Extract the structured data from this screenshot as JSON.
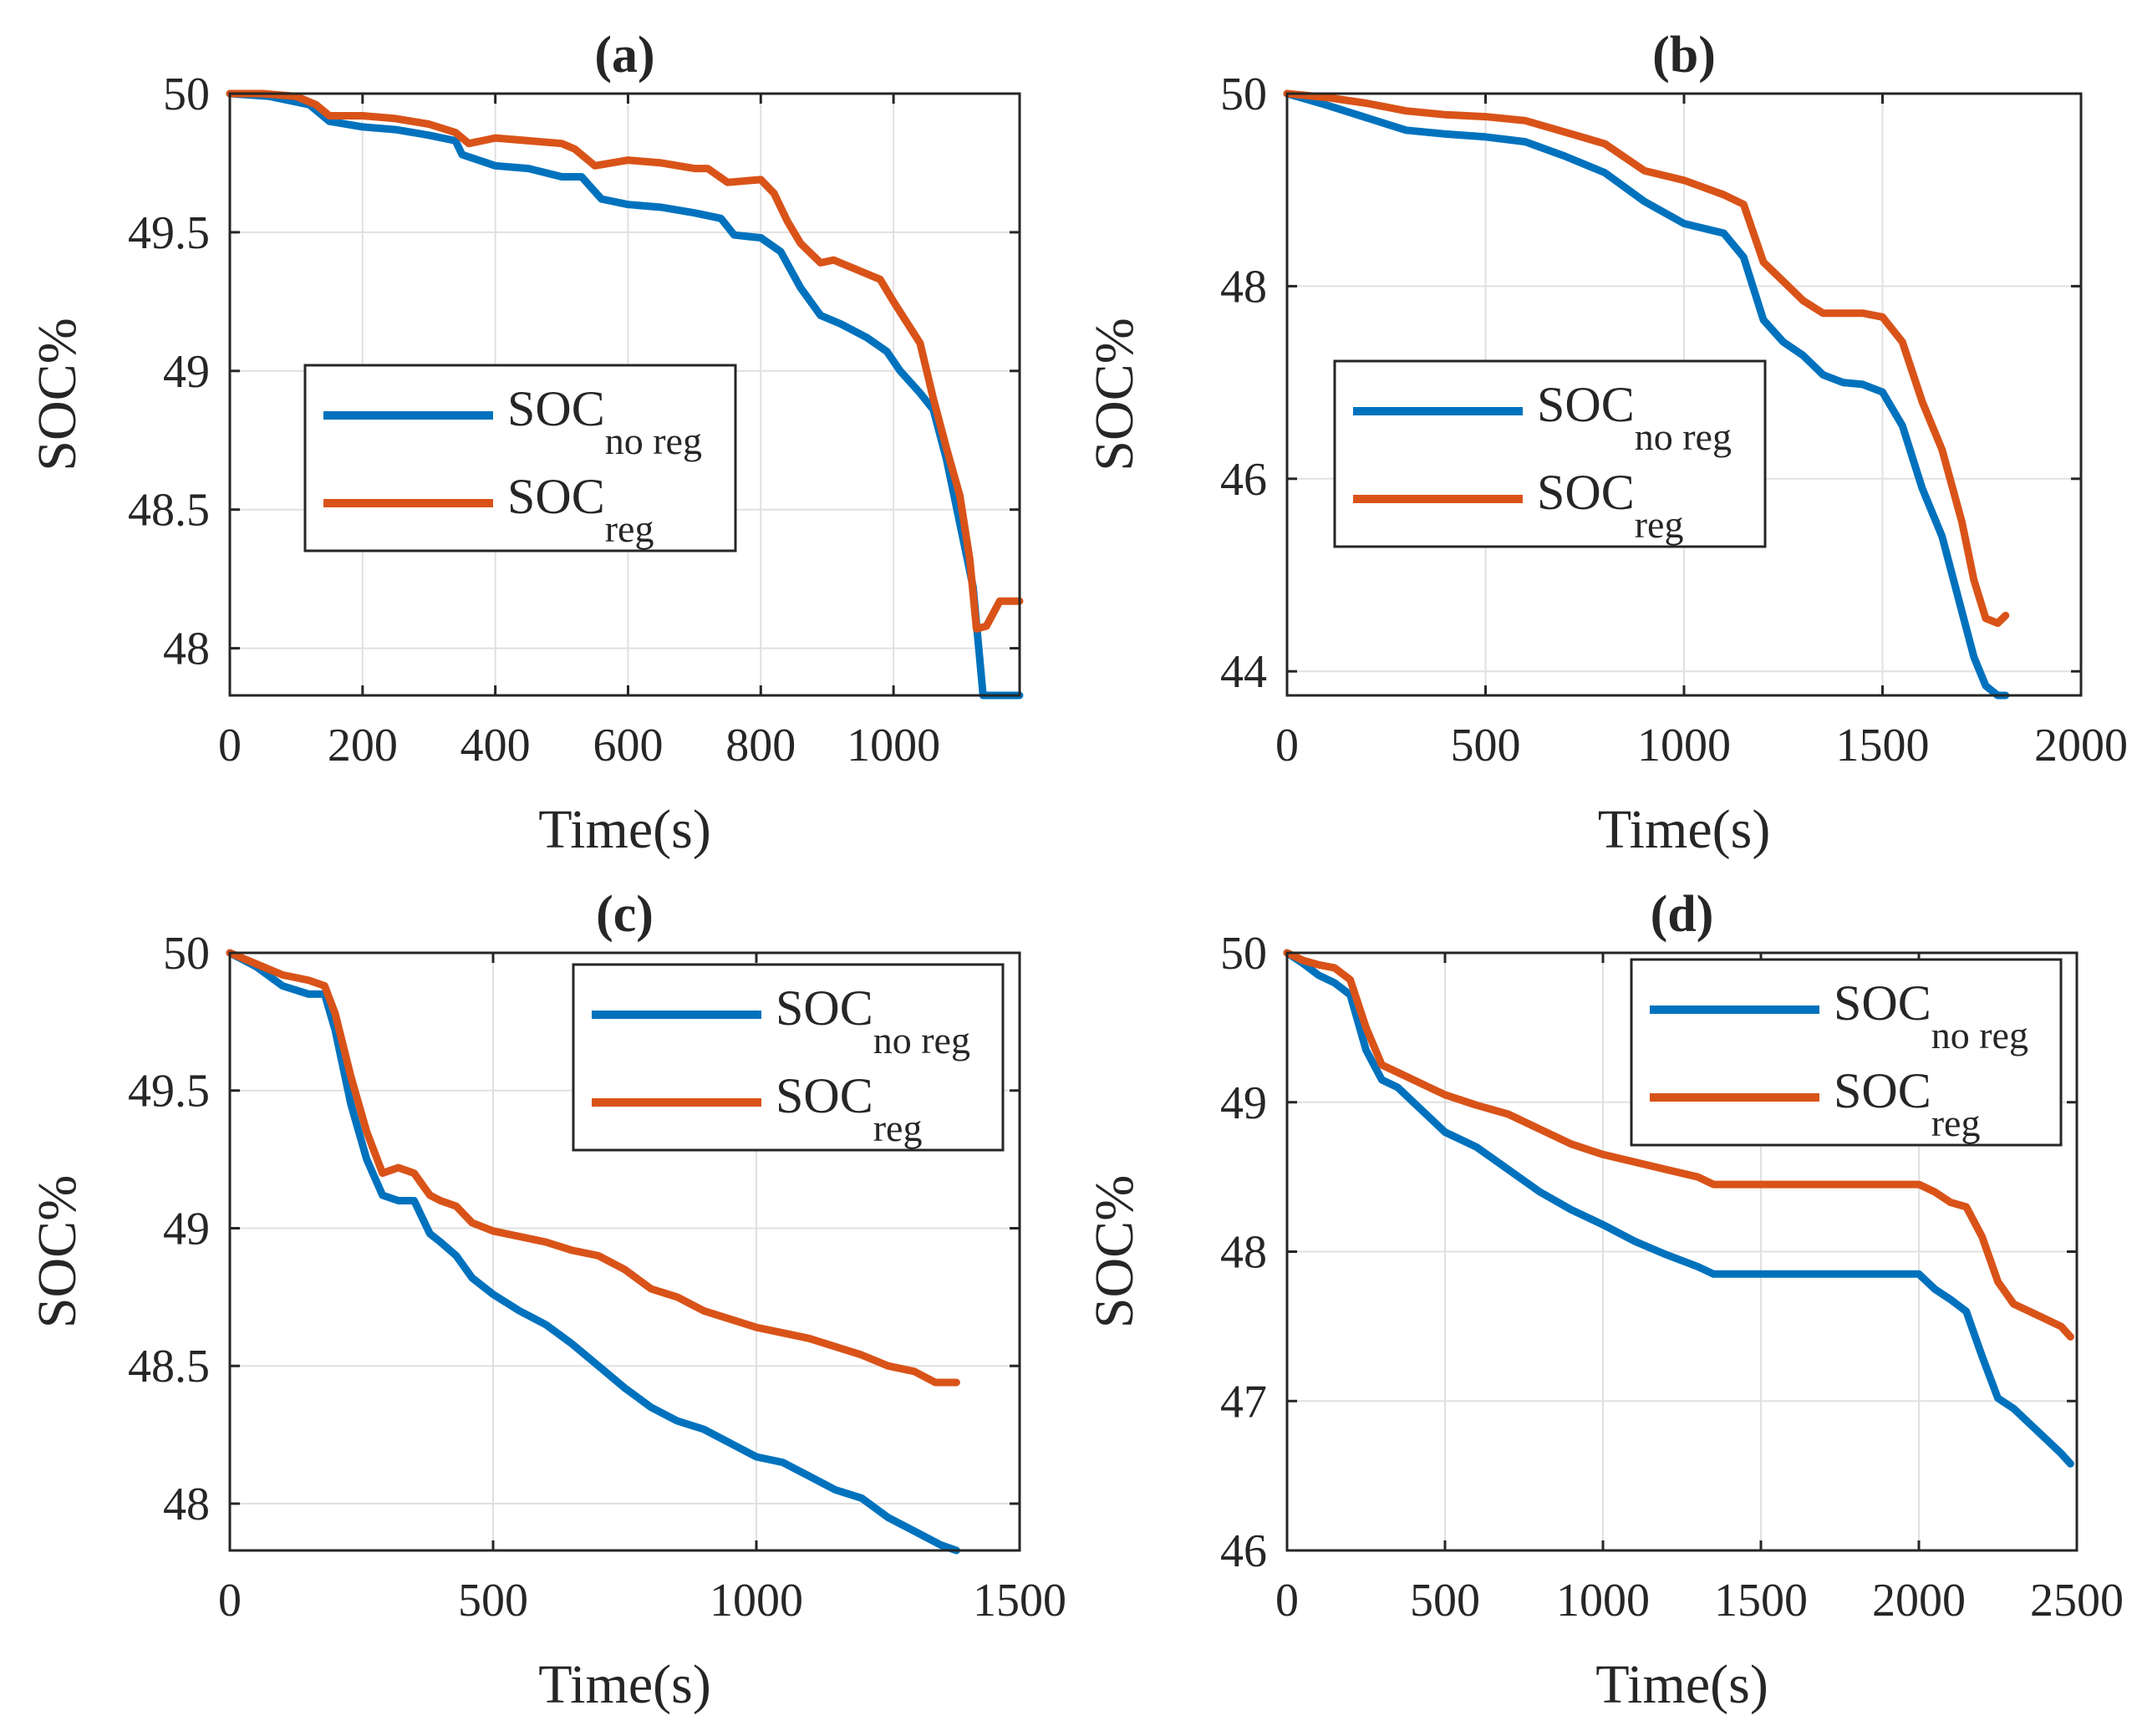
{
  "figure": {
    "colors": {
      "no_reg": "#0072BD",
      "reg": "#D95319",
      "grid": "#e0e0e0",
      "axis": "#262626"
    }
  },
  "chart_data": [
    {
      "type": "line",
      "panel": "(a)",
      "title": "(a)",
      "xlabel": "Time(s)",
      "ylabel": "SOC%",
      "xlim": [
        0,
        1190
      ],
      "ylim": [
        47.83,
        50
      ],
      "xticks": [
        0,
        200,
        400,
        600,
        800,
        1000
      ],
      "xtick_labels": [
        "0",
        "200",
        "400",
        "600",
        "800",
        "1000"
      ],
      "yticks": [
        48,
        48.5,
        49,
        49.5,
        50
      ],
      "ytick_labels": [
        "48",
        "48.5",
        "49",
        "49.5",
        "50"
      ],
      "grid": true,
      "legend_position": "middle-left",
      "legend": [
        {
          "base": "SOC",
          "sub": "no reg"
        },
        {
          "base": "SOC",
          "sub": "reg"
        }
      ],
      "series": [
        {
          "name": "SOC no reg",
          "x": [
            0,
            60,
            120,
            150,
            200,
            250,
            300,
            340,
            350,
            400,
            450,
            500,
            530,
            560,
            600,
            650,
            700,
            740,
            760,
            800,
            830,
            860,
            890,
            920,
            960,
            990,
            1010,
            1040,
            1060,
            1080,
            1100,
            1120,
            1135,
            1150,
            1170,
            1190
          ],
          "y": [
            50,
            49.99,
            49.96,
            49.9,
            49.88,
            49.87,
            49.85,
            49.83,
            49.78,
            49.74,
            49.73,
            49.7,
            49.7,
            49.62,
            49.6,
            49.59,
            49.57,
            49.55,
            49.49,
            49.48,
            49.43,
            49.3,
            49.2,
            49.17,
            49.12,
            49.07,
            49,
            48.92,
            48.86,
            48.68,
            48.45,
            48.22,
            47.83,
            47.83,
            47.83,
            47.83
          ]
        },
        {
          "name": "SOC reg",
          "x": [
            0,
            50,
            100,
            130,
            150,
            200,
            250,
            300,
            340,
            360,
            400,
            450,
            500,
            520,
            550,
            600,
            650,
            700,
            720,
            750,
            800,
            820,
            840,
            860,
            890,
            910,
            950,
            980,
            1000,
            1040,
            1060,
            1080,
            1100,
            1115,
            1125,
            1140,
            1160,
            1190
          ],
          "y": [
            50,
            50,
            49.99,
            49.96,
            49.92,
            49.92,
            49.91,
            49.89,
            49.86,
            49.82,
            49.84,
            49.83,
            49.82,
            49.8,
            49.74,
            49.76,
            49.75,
            49.73,
            49.73,
            49.68,
            49.69,
            49.64,
            49.54,
            49.46,
            49.39,
            49.4,
            49.36,
            49.33,
            49.25,
            49.1,
            48.9,
            48.72,
            48.55,
            48.32,
            48.07,
            48.08,
            48.17,
            48.17
          ]
        }
      ]
    },
    {
      "type": "line",
      "panel": "(b)",
      "title": "(b)",
      "xlabel": "Time(s)",
      "ylabel": "SOC%",
      "xlim": [
        0,
        2000
      ],
      "ylim": [
        43.75,
        50
      ],
      "xticks": [
        0,
        500,
        1000,
        1500,
        2000
      ],
      "xtick_labels": [
        "0",
        "500",
        "1000",
        "1500",
        "2000"
      ],
      "yticks": [
        44,
        46,
        48,
        50
      ],
      "ytick_labels": [
        "44",
        "46",
        "48",
        "50"
      ],
      "grid": true,
      "legend_position": "middle-left",
      "legend": [
        {
          "base": "SOC",
          "sub": "no reg"
        },
        {
          "base": "SOC",
          "sub": "reg"
        }
      ],
      "series": [
        {
          "name": "SOC no reg",
          "x": [
            0,
            100,
            200,
            300,
            400,
            500,
            600,
            700,
            800,
            900,
            1000,
            1100,
            1150,
            1200,
            1250,
            1300,
            1350,
            1400,
            1450,
            1500,
            1550,
            1600,
            1650,
            1700,
            1730,
            1760,
            1790,
            1810
          ],
          "y": [
            50,
            49.88,
            49.75,
            49.62,
            49.58,
            49.55,
            49.5,
            49.35,
            49.18,
            48.88,
            48.65,
            48.55,
            48.3,
            47.65,
            47.42,
            47.28,
            47.08,
            47.0,
            46.98,
            46.9,
            46.55,
            45.9,
            45.4,
            44.62,
            44.15,
            43.85,
            43.75,
            43.75
          ]
        },
        {
          "name": "SOC reg",
          "x": [
            0,
            100,
            200,
            300,
            400,
            500,
            600,
            700,
            800,
            900,
            1000,
            1100,
            1150,
            1200,
            1250,
            1300,
            1350,
            1400,
            1450,
            1500,
            1550,
            1600,
            1650,
            1700,
            1730,
            1760,
            1790,
            1810
          ],
          "y": [
            50,
            49.96,
            49.9,
            49.82,
            49.78,
            49.76,
            49.72,
            49.6,
            49.48,
            49.2,
            49.1,
            48.95,
            48.85,
            48.25,
            48.05,
            47.85,
            47.72,
            47.72,
            47.72,
            47.68,
            47.42,
            46.8,
            46.3,
            45.55,
            44.95,
            44.55,
            44.5,
            44.58
          ]
        }
      ]
    },
    {
      "type": "line",
      "panel": "(c)",
      "title": "(c)",
      "xlabel": "Time(s)",
      "ylabel": "SOC%",
      "xlim": [
        0,
        1500
      ],
      "ylim": [
        47.83,
        50
      ],
      "xticks": [
        0,
        500,
        1000,
        1500
      ],
      "xtick_labels": [
        "0",
        "500",
        "1000",
        "1500"
      ],
      "yticks": [
        48,
        48.5,
        49,
        49.5,
        50
      ],
      "ytick_labels": [
        "48",
        "48.5",
        "49",
        "49.5",
        "50"
      ],
      "grid": true,
      "legend_position": "top-right",
      "legend": [
        {
          "base": "SOC",
          "sub": "no reg"
        },
        {
          "base": "SOC",
          "sub": "reg"
        }
      ],
      "series": [
        {
          "name": "SOC no reg",
          "x": [
            0,
            50,
            100,
            150,
            180,
            200,
            230,
            260,
            290,
            320,
            350,
            380,
            400,
            430,
            460,
            500,
            550,
            600,
            650,
            700,
            750,
            800,
            850,
            900,
            950,
            1000,
            1050,
            1100,
            1150,
            1200,
            1250,
            1300,
            1350,
            1380
          ],
          "y": [
            50,
            49.95,
            49.88,
            49.85,
            49.85,
            49.72,
            49.45,
            49.25,
            49.12,
            49.1,
            49.1,
            48.98,
            48.95,
            48.9,
            48.82,
            48.76,
            48.7,
            48.65,
            48.58,
            48.5,
            48.42,
            48.35,
            48.3,
            48.27,
            48.22,
            48.17,
            48.15,
            48.1,
            48.05,
            48.02,
            47.95,
            47.9,
            47.85,
            47.83
          ]
        },
        {
          "name": "SOC reg",
          "x": [
            0,
            50,
            100,
            150,
            180,
            200,
            230,
            260,
            290,
            320,
            350,
            380,
            400,
            430,
            460,
            500,
            550,
            600,
            650,
            700,
            750,
            800,
            850,
            900,
            950,
            1000,
            1050,
            1100,
            1150,
            1200,
            1250,
            1300,
            1340,
            1380
          ],
          "y": [
            50,
            49.96,
            49.92,
            49.9,
            49.88,
            49.78,
            49.55,
            49.35,
            49.2,
            49.22,
            49.2,
            49.12,
            49.1,
            49.08,
            49.02,
            48.99,
            48.97,
            48.95,
            48.92,
            48.9,
            48.85,
            48.78,
            48.75,
            48.7,
            48.67,
            48.64,
            48.62,
            48.6,
            48.57,
            48.54,
            48.5,
            48.48,
            48.44,
            48.44
          ]
        }
      ]
    },
    {
      "type": "line",
      "panel": "(d)",
      "title": "(d)",
      "xlabel": "Time(s)",
      "ylabel": "SOC%",
      "xlim": [
        0,
        2500
      ],
      "ylim": [
        46,
        50
      ],
      "xticks": [
        0,
        500,
        1000,
        1500,
        2000,
        2500
      ],
      "xtick_labels": [
        "0",
        "500",
        "1000",
        "1500",
        "2000",
        "2500"
      ],
      "yticks": [
        46,
        47,
        48,
        49,
        50
      ],
      "ytick_labels": [
        "46",
        "47",
        "48",
        "49",
        "50"
      ],
      "grid": true,
      "legend_position": "top-right",
      "legend": [
        {
          "base": "SOC",
          "sub": "no reg"
        },
        {
          "base": "SOC",
          "sub": "reg"
        }
      ],
      "series": [
        {
          "name": "SOC no reg",
          "x": [
            0,
            50,
            100,
            150,
            200,
            250,
            300,
            350,
            400,
            450,
            500,
            600,
            700,
            800,
            900,
            1000,
            1100,
            1200,
            1300,
            1350,
            1400,
            1500,
            1600,
            1700,
            1800,
            1900,
            2000,
            2050,
            2100,
            2150,
            2200,
            2250,
            2300,
            2350,
            2400,
            2450,
            2480
          ],
          "y": [
            50,
            49.93,
            49.85,
            49.8,
            49.72,
            49.35,
            49.15,
            49.1,
            49.0,
            48.9,
            48.8,
            48.7,
            48.55,
            48.4,
            48.28,
            48.18,
            48.07,
            47.98,
            47.9,
            47.85,
            47.85,
            47.85,
            47.85,
            47.85,
            47.85,
            47.85,
            47.85,
            47.75,
            47.68,
            47.6,
            47.3,
            47.02,
            46.95,
            46.85,
            46.75,
            46.65,
            46.58
          ]
        },
        {
          "name": "SOC reg",
          "x": [
            0,
            50,
            100,
            150,
            200,
            250,
            300,
            350,
            400,
            450,
            500,
            600,
            700,
            800,
            900,
            1000,
            1100,
            1200,
            1300,
            1350,
            1400,
            1500,
            1600,
            1700,
            1800,
            1900,
            2000,
            2050,
            2100,
            2150,
            2200,
            2250,
            2300,
            2350,
            2400,
            2450,
            2480
          ],
          "y": [
            50,
            49.95,
            49.92,
            49.9,
            49.82,
            49.5,
            49.25,
            49.2,
            49.15,
            49.1,
            49.05,
            48.98,
            48.92,
            48.82,
            48.72,
            48.65,
            48.6,
            48.55,
            48.5,
            48.45,
            48.45,
            48.45,
            48.45,
            48.45,
            48.45,
            48.45,
            48.45,
            48.4,
            48.33,
            48.3,
            48.1,
            47.8,
            47.65,
            47.6,
            47.55,
            47.5,
            47.43
          ]
        }
      ]
    }
  ]
}
